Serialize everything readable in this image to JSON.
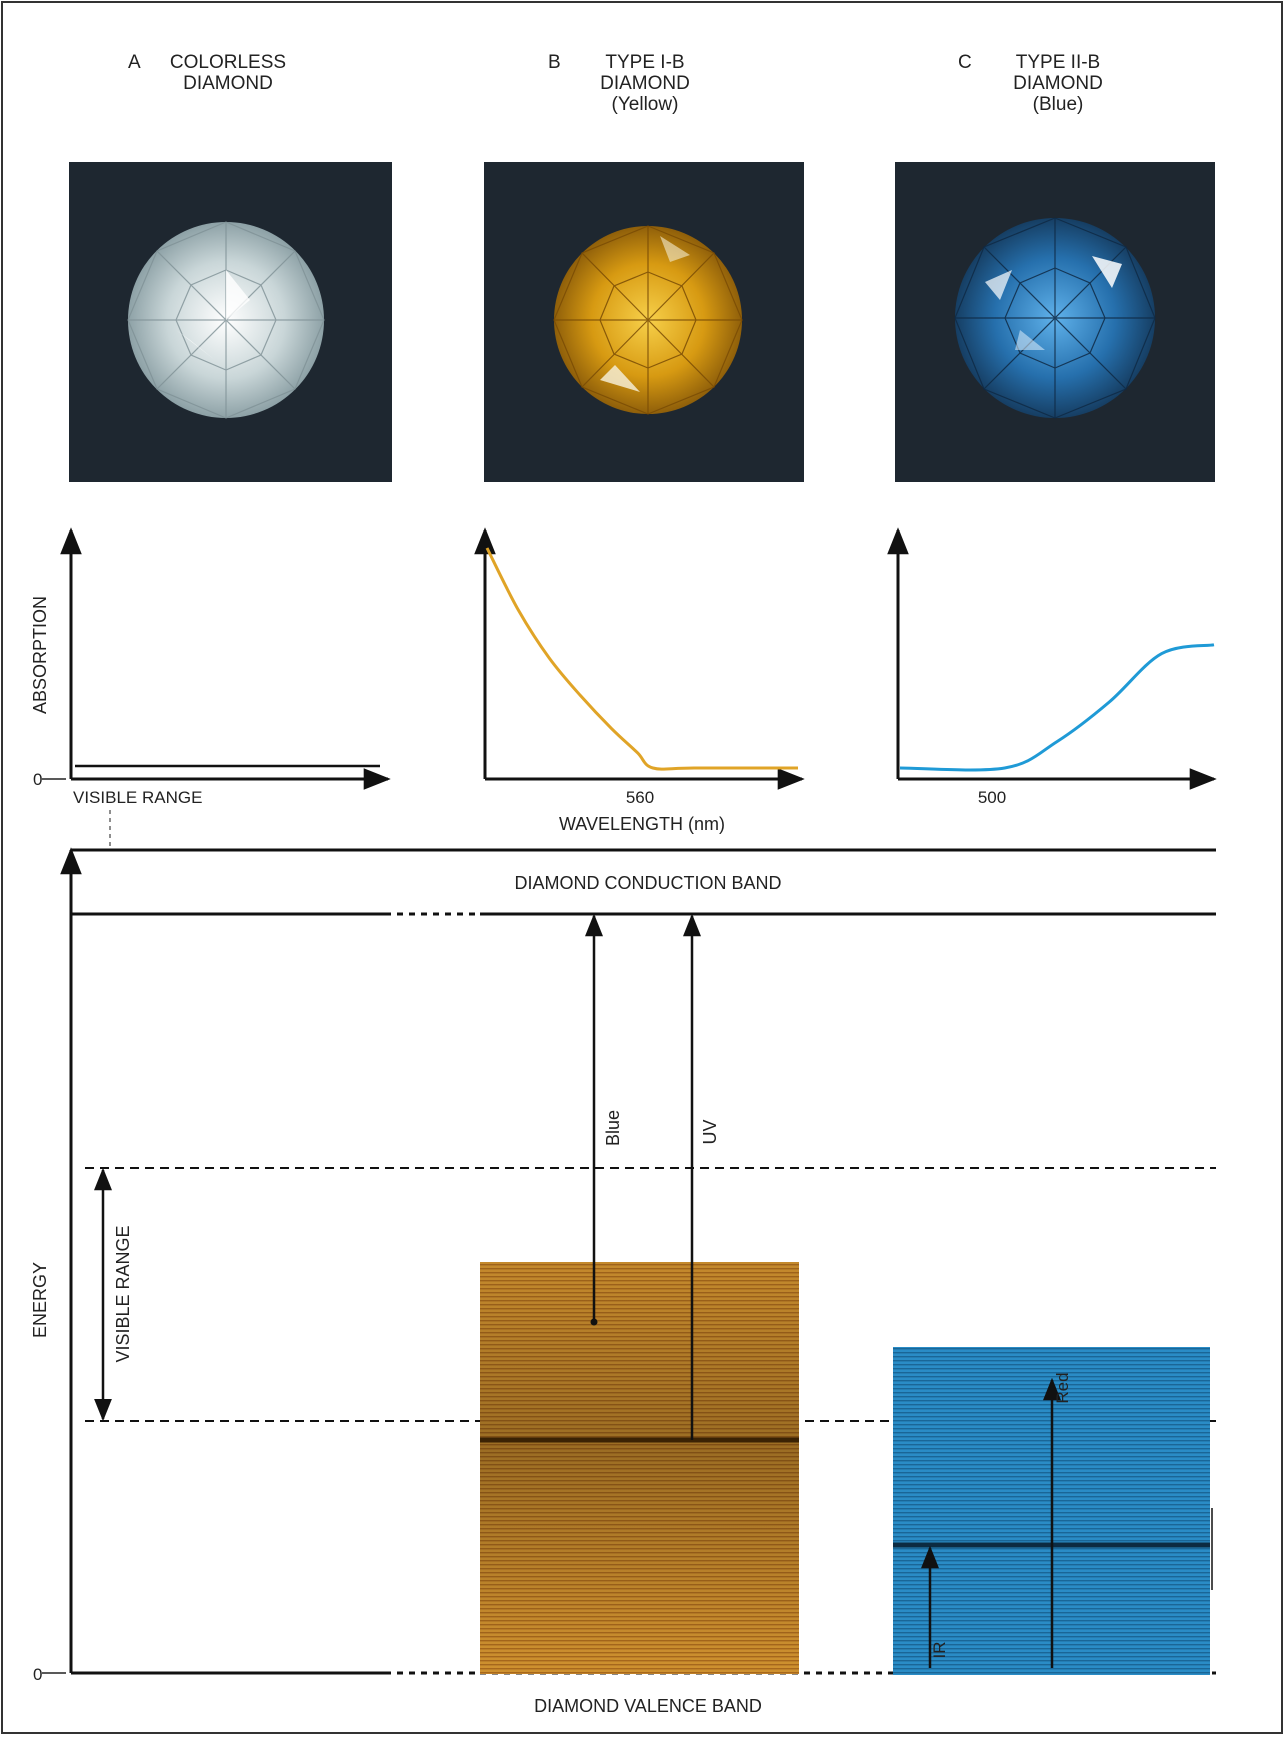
{
  "panels": {
    "a": {
      "letter": "A",
      "title": [
        "COLORLESS",
        "DIAMOND"
      ],
      "photo": "colorless-diamond",
      "bg_color": "#1e2730",
      "stone_color": "#dfe8ea"
    },
    "b": {
      "letter": "B",
      "title": [
        "TYPE I-B",
        "DIAMOND",
        "(Yellow)"
      ],
      "photo": "yellow-diamond",
      "bg_color": "#1e2730",
      "stone_color": "#e2a81c"
    },
    "c": {
      "letter": "C",
      "title": [
        "TYPE II-B",
        "DIAMOND",
        "(Blue)"
      ],
      "photo": "blue-diamond",
      "bg_color": "#1e2730",
      "stone_color": "#2f7fc4"
    }
  },
  "spectra": {
    "ylabel": "ABSORPTION",
    "zero": "0",
    "a_xlabel": "VISIBLE RANGE",
    "b_tick": "560",
    "c_tick": "500",
    "xlabel": "WAVELENGTH (nm)",
    "yellow_color": "#e0a427",
    "blue_color": "#1f9ad6"
  },
  "chart_data": [
    {
      "type": "line",
      "title": "A COLORLESS DIAMOND",
      "xlabel": "VISIBLE RANGE",
      "ylabel": "ABSORPTION",
      "series": [
        {
          "x": [
            0,
            1
          ],
          "values": [
            0,
            0
          ]
        }
      ]
    },
    {
      "type": "line",
      "title": "B TYPE I-B DIAMOND (Yellow)",
      "xlabel": "WAVELENGTH (nm)",
      "ylabel": "ABSORPTION",
      "x_ticks": [
        560
      ],
      "series": [
        {
          "x": [
            400,
            430,
            460,
            490,
            520,
            545,
            560,
            600,
            700
          ],
          "values": [
            1.0,
            0.72,
            0.5,
            0.33,
            0.18,
            0.07,
            0.0,
            0.0,
            0.0
          ]
        }
      ]
    },
    {
      "type": "line",
      "title": "C TYPE II-B DIAMOND (Blue)",
      "xlabel": "WAVELENGTH (nm)",
      "ylabel": "ABSORPTION",
      "x_ticks": [
        500
      ],
      "series": [
        {
          "x": [
            400,
            500,
            550,
            600,
            650,
            700
          ],
          "values": [
            0.0,
            0.0,
            0.12,
            0.3,
            0.52,
            0.56
          ]
        }
      ]
    }
  ],
  "energy": {
    "ylabel": "ENERGY",
    "zero": "0",
    "conduction_band": "DIAMOND CONDUCTION BAND",
    "valence_band": "DIAMOND VALENCE BAND",
    "visible_range": "VISIBLE RANGE",
    "blue": "Blue",
    "uv": "UV",
    "red": "Red",
    "ir": "IR",
    "yellow_band_color": "#c98a2a",
    "blue_band_color": "#2a86be"
  }
}
